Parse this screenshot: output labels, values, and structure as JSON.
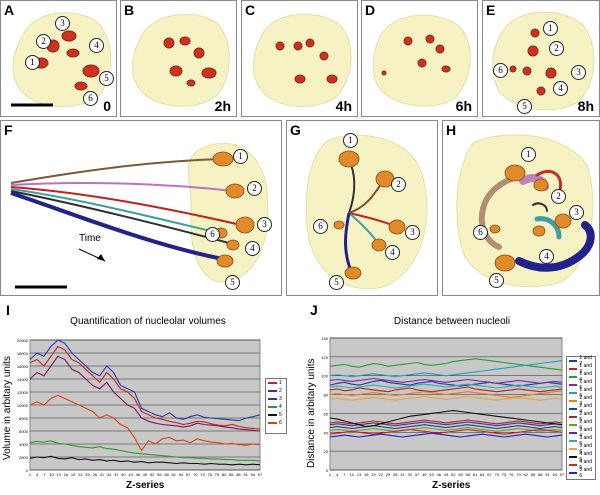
{
  "panels": {
    "A": {
      "label": "A",
      "time": "0",
      "nums": [
        "1",
        "2",
        "3",
        "4",
        "5",
        "6"
      ]
    },
    "B": {
      "label": "B",
      "time": "2h"
    },
    "C": {
      "label": "C",
      "time": "4h"
    },
    "D": {
      "label": "D",
      "time": "6h"
    },
    "E": {
      "label": "E",
      "time": "8h",
      "nums": [
        "1",
        "2",
        "3",
        "4",
        "5",
        "6"
      ]
    },
    "F": {
      "label": "F",
      "nums": [
        "1",
        "2",
        "3",
        "4",
        "5",
        "6"
      ],
      "arrow_label": "Time"
    },
    "G": {
      "label": "G",
      "nums": [
        "1",
        "2",
        "3",
        "4",
        "5",
        "6"
      ]
    },
    "H": {
      "label": "H",
      "nums": [
        "1",
        "2",
        "3",
        "4",
        "5",
        "6"
      ]
    },
    "I": {
      "label": "I"
    },
    "J": {
      "label": "J"
    }
  },
  "colors": {
    "cell": "#f6f2c4",
    "nucleolus": "#e07a20",
    "nucleolus_dark": "#a24a10",
    "red": "#d0301e",
    "plot_bg": "#c8c8c8"
  },
  "chart_data": [
    {
      "type": "line",
      "title": "Quantification of nucleolar volumes",
      "xlabel": "Z-series",
      "ylabel": "Volume in arbitary units",
      "ylim": [
        0,
        20000
      ],
      "yticks": [
        "0",
        "2000",
        "4000",
        "6000",
        "8000",
        "10000",
        "12000",
        "14000",
        "16000",
        "18000",
        "20000"
      ],
      "xticks": [
        "1",
        "4",
        "7",
        "10",
        "13",
        "16",
        "19",
        "22",
        "25",
        "28",
        "31",
        "34",
        "37",
        "40",
        "43",
        "46",
        "49",
        "52",
        "55",
        "58",
        "61",
        "64",
        "67",
        "70",
        "73",
        "76",
        "79",
        "82",
        "85",
        "88",
        "91",
        "94",
        "97"
      ],
      "legend_position": "right",
      "series": [
        {
          "name": "1",
          "color": "#cc2222",
          "values": [
            16500,
            17000,
            16000,
            17500,
            19000,
            18500,
            17000,
            16500,
            15500,
            14500,
            13500,
            15000,
            14000,
            12500,
            12000,
            11000,
            9000,
            8500,
            8000,
            7800,
            7500,
            7300,
            7000,
            7200,
            7500,
            7400,
            7100,
            6900,
            6800,
            7000,
            6700,
            6500,
            6400,
            6300
          ]
        },
        {
          "name": "2",
          "color": "#7a1b5a",
          "values": [
            14000,
            15000,
            14500,
            16000,
            17500,
            17000,
            15500,
            15000,
            14000,
            13000,
            12500,
            13500,
            12000,
            11000,
            10000,
            9500,
            8000,
            7500,
            7200,
            7000,
            6900,
            6800,
            6600,
            6800,
            7200,
            7000,
            6900,
            6800,
            6600,
            6500,
            6300,
            6200,
            6100,
            6000
          ]
        },
        {
          "name": "3",
          "color": "#2b3aa8",
          "values": [
            17000,
            18000,
            17500,
            19000,
            20000,
            19500,
            18000,
            17000,
            16000,
            15000,
            14500,
            16000,
            15000,
            13000,
            12500,
            12000,
            9500,
            9000,
            8500,
            8200,
            8800,
            8000,
            7800,
            8200,
            8500,
            8100,
            8000,
            7900,
            7800,
            7700,
            7600,
            8000,
            8200,
            8500
          ]
        },
        {
          "name": "4",
          "color": "#2e9a2e",
          "values": [
            4200,
            4400,
            4300,
            4500,
            4100,
            4000,
            3800,
            3600,
            3500,
            3400,
            3600,
            3300,
            3200,
            3000,
            2800,
            2600,
            2500,
            2400,
            2300,
            2200,
            2100,
            2000,
            1900,
            1900,
            1800,
            1800,
            1700,
            1700,
            1600,
            1600,
            1500,
            1500,
            1500,
            1400
          ]
        },
        {
          "name": "5",
          "color": "#111111",
          "values": [
            1800,
            2000,
            1900,
            2100,
            1800,
            1700,
            1900,
            1600,
            1700,
            1500,
            1600,
            1400,
            1500,
            1300,
            1400,
            1200,
            1300,
            1100,
            1200,
            1200,
            1100,
            1000,
            1100,
            1000,
            1000,
            900,
            1000,
            900,
            900,
            800,
            900,
            800,
            900,
            800
          ]
        },
        {
          "name": "6",
          "color": "#e04010",
          "values": [
            10000,
            10500,
            10000,
            11000,
            11500,
            11000,
            10500,
            10000,
            9500,
            9000,
            8000,
            8500,
            8000,
            7000,
            6500,
            5000,
            3000,
            4500,
            4000,
            4800,
            5000,
            4500,
            4600,
            4200,
            4800,
            4500,
            4300,
            4200,
            4000,
            4100,
            3900,
            3800,
            4000,
            3900
          ]
        }
      ]
    },
    {
      "type": "line",
      "title": "Distance between nucleoli",
      "xlabel": "Z-series",
      "ylabel": "Distance in arbitary units",
      "ylim": [
        0,
        140
      ],
      "yticks": [
        "0",
        "20",
        "40",
        "60",
        "80",
        "100",
        "120",
        "140"
      ],
      "xticks": [
        "1",
        "4",
        "7",
        "10",
        "13",
        "16",
        "19",
        "22",
        "25",
        "28",
        "31",
        "34",
        "37",
        "40",
        "43",
        "46",
        "49",
        "52",
        "55",
        "58",
        "61",
        "64",
        "67",
        "70",
        "73",
        "76",
        "79",
        "82",
        "85",
        "88",
        "91",
        "94",
        "97"
      ],
      "legend_position": "right",
      "series": [
        {
          "name": "1 and 2",
          "color": "#1f3aa8",
          "values": [
            90,
            92,
            93,
            91,
            90,
            92,
            94,
            95,
            93,
            92,
            91,
            90,
            92,
            93,
            94,
            92,
            91,
            90,
            89,
            90,
            91,
            92,
            93,
            92,
            91,
            90,
            89,
            90,
            91,
            92,
            93,
            92,
            91
          ]
        },
        {
          "name": "1 and 3",
          "color": "#c02020",
          "values": [
            85,
            86,
            84,
            85,
            87,
            86,
            85,
            84,
            83,
            85,
            86,
            87,
            85,
            84,
            83,
            84,
            85,
            86,
            87,
            88,
            86,
            85,
            84,
            83,
            84,
            85,
            86,
            85,
            84,
            83,
            84,
            85,
            86
          ]
        },
        {
          "name": "1 and 4",
          "color": "#2aa02a",
          "values": [
            110,
            111,
            112,
            110,
            109,
            111,
            113,
            112,
            110,
            111,
            112,
            113,
            114,
            112,
            111,
            112,
            113,
            115,
            116,
            117,
            118,
            117,
            116,
            115,
            114,
            113,
            112,
            111,
            110,
            109,
            108,
            107,
            106
          ]
        },
        {
          "name": "1 and 5",
          "color": "#7a2aa8",
          "values": [
            95,
            96,
            95,
            94,
            95,
            96,
            97,
            96,
            95,
            94,
            93,
            94,
            95,
            96,
            95,
            94,
            93,
            94,
            95,
            96,
            95,
            94,
            93,
            92,
            93,
            94,
            95,
            94,
            93,
            92,
            93,
            94,
            93
          ]
        },
        {
          "name": "1 and 6",
          "color": "#20a0c8",
          "values": [
            100,
            101,
            100,
            99,
            100,
            101,
            102,
            101,
            100,
            99,
            100,
            101,
            102,
            103,
            102,
            101,
            100,
            101,
            102,
            103,
            104,
            105,
            106,
            107,
            108,
            109,
            110,
            111,
            112,
            113,
            114,
            115,
            116
          ]
        },
        {
          "name": "2 and 3",
          "color": "#e08020",
          "values": [
            80,
            81,
            80,
            79,
            80,
            81,
            82,
            81,
            80,
            79,
            80,
            81,
            82,
            83,
            82,
            81,
            80,
            81,
            82,
            83,
            82,
            81,
            80,
            79,
            78,
            77,
            78,
            79,
            80,
            81,
            82,
            83,
            84
          ]
        },
        {
          "name": "2 and 4",
          "color": "#1a4a8a",
          "values": [
            45,
            46,
            45,
            44,
            45,
            46,
            47,
            46,
            45,
            44,
            45,
            46,
            47,
            48,
            47,
            46,
            45,
            46,
            47,
            48,
            47,
            46,
            45,
            44,
            45,
            46,
            47,
            46,
            45,
            44,
            45,
            46,
            45
          ]
        },
        {
          "name": "2 and 5",
          "color": "#a02a2a",
          "values": [
            50,
            51,
            50,
            49,
            50,
            51,
            52,
            51,
            50,
            49,
            50,
            51,
            52,
            53,
            52,
            51,
            50,
            51,
            52,
            53,
            52,
            51,
            50,
            49,
            50,
            51,
            52,
            51,
            50,
            49,
            50,
            51,
            50
          ]
        },
        {
          "name": "2 and 6",
          "color": "#6aa02a",
          "values": [
            42,
            43,
            42,
            41,
            42,
            43,
            44,
            43,
            42,
            41,
            42,
            43,
            44,
            45,
            44,
            43,
            42,
            43,
            44,
            45,
            44,
            43,
            42,
            41,
            42,
            43,
            44,
            43,
            42,
            41,
            42,
            43,
            42
          ]
        },
        {
          "name": "3 and 4",
          "color": "#5a2a8a",
          "values": [
            48,
            49,
            48,
            47,
            48,
            49,
            50,
            49,
            48,
            47,
            48,
            49,
            50,
            51,
            50,
            49,
            48,
            49,
            50,
            51,
            50,
            49,
            48,
            47,
            48,
            49,
            50,
            49,
            48,
            47,
            48,
            49,
            48
          ]
        },
        {
          "name": "3 and 5",
          "color": "#2ab0b0",
          "values": [
            88,
            89,
            88,
            87,
            88,
            89,
            90,
            89,
            88,
            87,
            88,
            89,
            90,
            91,
            90,
            89,
            88,
            89,
            90,
            91,
            90,
            89,
            88,
            87,
            88,
            89,
            90,
            89,
            88,
            87,
            88,
            89,
            88
          ]
        },
        {
          "name": "3 and 6",
          "color": "#f0a040",
          "values": [
            75,
            76,
            75,
            74,
            75,
            76,
            77,
            76,
            75,
            74,
            75,
            76,
            77,
            78,
            77,
            76,
            75,
            76,
            77,
            78,
            77,
            76,
            75,
            74,
            75,
            76,
            77,
            76,
            75,
            74,
            75,
            76,
            75
          ]
        },
        {
          "name": "4 and 5",
          "color": "#111111",
          "values": [
            55,
            54,
            52,
            50,
            48,
            46,
            47,
            49,
            51,
            53,
            55,
            57,
            58,
            59,
            60,
            61,
            62,
            63,
            62,
            61,
            60,
            59,
            58,
            57,
            56,
            55,
            54,
            53,
            52,
            51,
            50,
            49,
            48
          ]
        },
        {
          "name": "4 and 6",
          "color": "#d02020",
          "values": [
            38,
            39,
            40,
            41,
            40,
            39,
            38,
            39,
            40,
            41,
            42,
            43,
            42,
            41,
            40,
            39,
            40,
            41,
            42,
            43,
            42,
            41,
            40,
            39,
            38,
            39,
            40,
            41,
            42,
            43,
            42,
            41,
            40
          ]
        },
        {
          "name": "5 and 6",
          "color": "#2020c0",
          "values": [
            35,
            36,
            37,
            36,
            35,
            36,
            37,
            38,
            37,
            36,
            35,
            36,
            37,
            38,
            39,
            38,
            37,
            36,
            35,
            36,
            37,
            38,
            37,
            36,
            35,
            36,
            37,
            38,
            37,
            36,
            35,
            36,
            37
          ]
        }
      ]
    }
  ]
}
